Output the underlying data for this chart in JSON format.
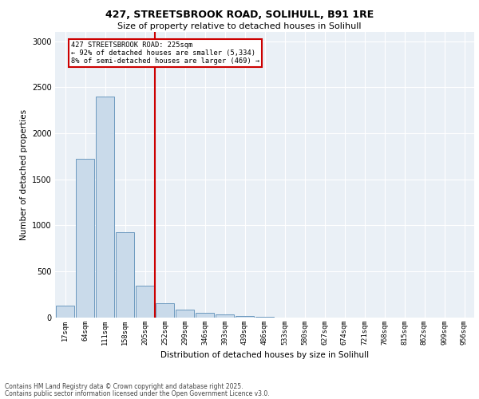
{
  "title_line1": "427, STREETSBROOK ROAD, SOLIHULL, B91 1RE",
  "title_line2": "Size of property relative to detached houses in Solihull",
  "xlabel": "Distribution of detached houses by size in Solihull",
  "ylabel": "Number of detached properties",
  "categories": [
    "17sqm",
    "64sqm",
    "111sqm",
    "158sqm",
    "205sqm",
    "252sqm",
    "299sqm",
    "346sqm",
    "393sqm",
    "439sqm",
    "486sqm",
    "533sqm",
    "580sqm",
    "627sqm",
    "674sqm",
    "721sqm",
    "768sqm",
    "815sqm",
    "862sqm",
    "909sqm",
    "956sqm"
  ],
  "values": [
    130,
    1720,
    2400,
    920,
    340,
    155,
    85,
    50,
    30,
    10,
    5,
    0,
    0,
    0,
    0,
    0,
    0,
    0,
    0,
    0,
    0
  ],
  "bar_color": "#c9daea",
  "bar_edge_color": "#5b8db8",
  "vline_x_index": 4.5,
  "vline_color": "#cc0000",
  "annotation_text": "427 STREETSBROOK ROAD: 225sqm\n← 92% of detached houses are smaller (5,334)\n8% of semi-detached houses are larger (469) →",
  "annotation_box_color": "#cc0000",
  "ylim": [
    0,
    3100
  ],
  "yticks": [
    0,
    500,
    1000,
    1500,
    2000,
    2500,
    3000
  ],
  "background_color": "#eaf0f6",
  "grid_color": "#ffffff",
  "footer_line1": "Contains HM Land Registry data © Crown copyright and database right 2025.",
  "footer_line2": "Contains public sector information licensed under the Open Government Licence v3.0."
}
